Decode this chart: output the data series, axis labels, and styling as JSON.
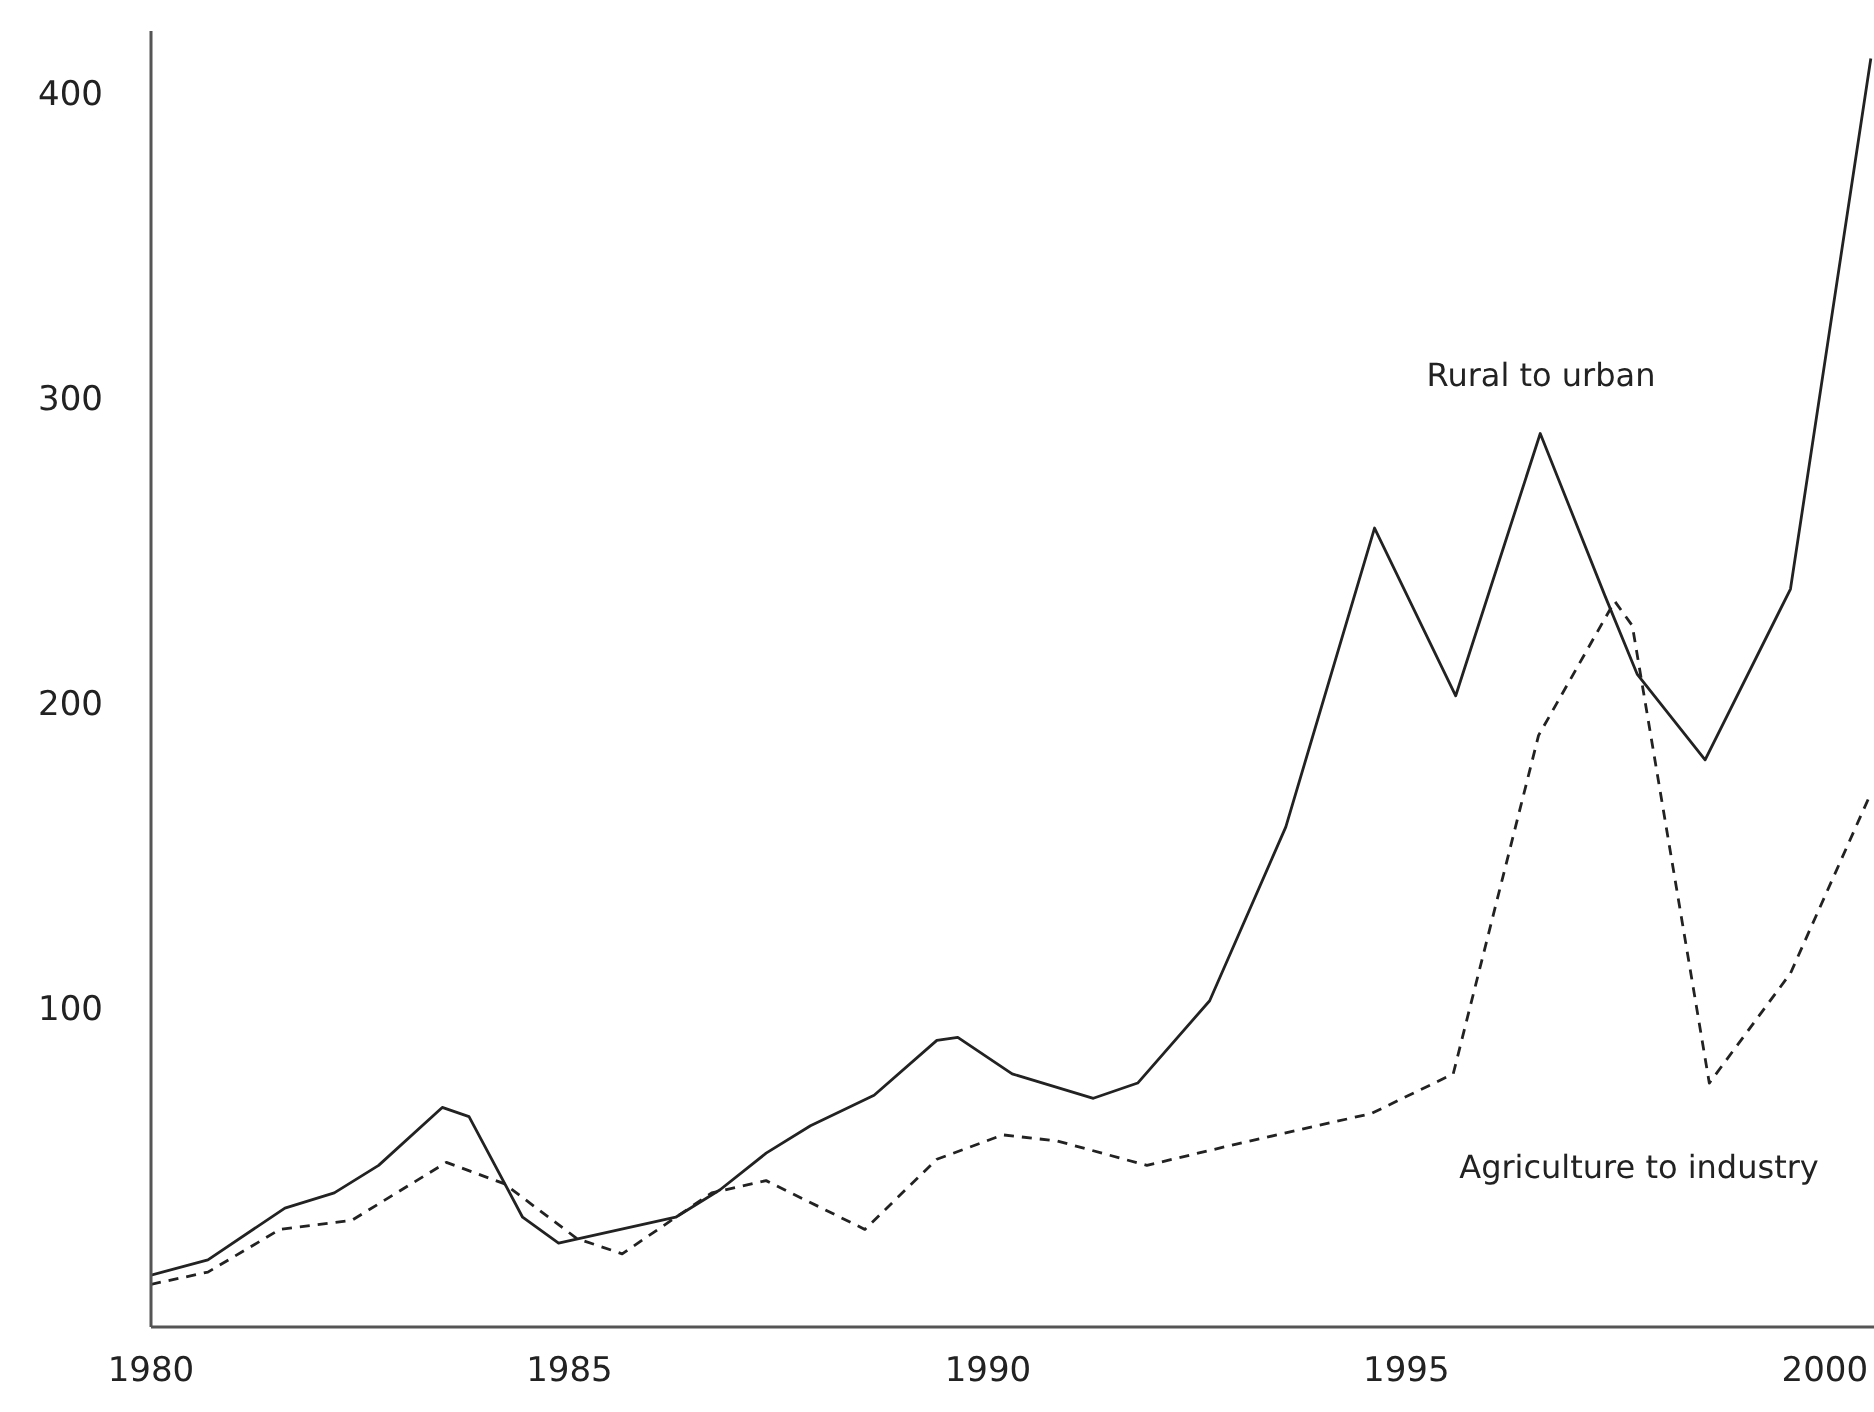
{
  "chart_data": {
    "type": "line",
    "xlim": [
      1980,
      2000.6
    ],
    "ylim": [
      -5,
      420
    ],
    "xticks": [
      1980,
      1985,
      1990,
      1995,
      2000
    ],
    "yticks": [
      100,
      200,
      300,
      400
    ],
    "grid": false,
    "series": [
      {
        "color": "#222222",
        "line_style": "solid",
        "x": [
          1980.0,
          1980.68,
          1981.6,
          1982.19,
          1982.72,
          1983.48,
          1983.8,
          1984.44,
          1984.87,
          1986.27,
          1986.8,
          1987.35,
          1987.88,
          1988.64,
          1989.39,
          1989.64,
          1990.29,
          1991.26,
          1991.79,
          1992.65,
          1993.56,
          1994.62,
          1995.59,
          1996.6,
          1997.37,
          1997.76,
          1998.57,
          1999.59,
          2000.55
        ],
        "values": [
          12,
          17,
          34,
          39,
          48,
          67,
          64,
          31,
          22.5,
          31,
          40,
          52,
          61,
          71,
          89,
          90,
          78,
          70,
          75,
          102,
          159,
          257,
          202,
          288,
          235,
          209,
          181,
          237,
          411
        ]
      },
      {
        "color": "#222222",
        "line_style": "dashed",
        "x": [
          1980.0,
          1980.68,
          1981.54,
          1982.4,
          1983.53,
          1984.22,
          1985.09,
          1985.63,
          1986.7,
          1987.35,
          1988.53,
          1989.39,
          1990.18,
          1990.83,
          1991.9,
          1992.97,
          1994.58,
          1995.56,
          1996.58,
          1997.49,
          1997.7,
          1998.62,
          1999.59,
          2000.55
        ],
        "values": [
          9,
          13,
          27,
          30,
          49,
          42,
          24,
          19,
          39,
          43,
          27,
          50,
          58,
          56,
          48,
          55,
          65,
          78,
          189,
          233,
          225,
          75,
          111,
          170
        ]
      }
    ],
    "annotations": [
      "Rural to urban",
      "Agriculture to industry"
    ]
  }
}
